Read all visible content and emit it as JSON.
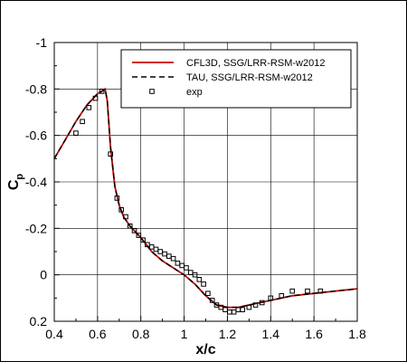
{
  "chart_data": {
    "type": "line",
    "xlabel": "x/c",
    "ylabel": "C",
    "ylabel_subscript": "p",
    "xlim": [
      0.4,
      1.8
    ],
    "ylim": [
      0.2,
      -1.0
    ],
    "y_axis_inverted": true,
    "grid": true,
    "legend_position": "top-right",
    "x_ticks": [
      "0.4",
      "0.6",
      "0.8",
      "1",
      "1.2",
      "1.4",
      "1.6",
      "1.8"
    ],
    "y_ticks": [
      "-1",
      "-0.8",
      "-0.6",
      "-0.4",
      "-0.2",
      "0",
      "0.2"
    ],
    "series": [
      {
        "name": "CFL3D, SSG/LRR-RSM-w2012",
        "style": "solid",
        "color": "#cc0000",
        "x": [
          0.4,
          0.45,
          0.5,
          0.55,
          0.58,
          0.6,
          0.62,
          0.635,
          0.645,
          0.66,
          0.68,
          0.7,
          0.72,
          0.75,
          0.78,
          0.8,
          0.85,
          0.9,
          0.95,
          1.0,
          1.05,
          1.1,
          1.15,
          1.2,
          1.25,
          1.3,
          1.4,
          1.5,
          1.6,
          1.7,
          1.8
        ],
        "y": [
          -0.5,
          -0.58,
          -0.66,
          -0.73,
          -0.76,
          -0.78,
          -0.79,
          -0.8,
          -0.75,
          -0.55,
          -0.38,
          -0.3,
          -0.25,
          -0.21,
          -0.18,
          -0.16,
          -0.1,
          -0.06,
          -0.03,
          0.0,
          0.04,
          0.09,
          0.13,
          0.14,
          0.14,
          0.13,
          0.11,
          0.09,
          0.08,
          0.07,
          0.06
        ]
      },
      {
        "name": "TAU, SSG/LRR-RSM-w2012",
        "style": "dashed",
        "color": "#000000",
        "x": [
          0.4,
          0.45,
          0.5,
          0.55,
          0.58,
          0.6,
          0.62,
          0.635,
          0.645,
          0.66,
          0.68,
          0.7,
          0.72,
          0.75,
          0.78,
          0.8,
          0.85,
          0.9,
          0.95,
          1.0,
          1.05,
          1.1,
          1.15,
          1.2,
          1.25,
          1.3,
          1.4,
          1.5,
          1.6,
          1.7,
          1.8
        ],
        "y": [
          -0.5,
          -0.58,
          -0.66,
          -0.73,
          -0.76,
          -0.78,
          -0.79,
          -0.8,
          -0.75,
          -0.55,
          -0.38,
          -0.3,
          -0.25,
          -0.21,
          -0.18,
          -0.16,
          -0.1,
          -0.06,
          -0.03,
          0.0,
          0.04,
          0.09,
          0.13,
          0.14,
          0.14,
          0.13,
          0.11,
          0.09,
          0.08,
          0.07,
          0.06
        ]
      },
      {
        "name": "exp",
        "style": "markers",
        "color": "#000000",
        "x": [
          0.5,
          0.53,
          0.56,
          0.59,
          0.62,
          0.66,
          0.69,
          0.71,
          0.73,
          0.75,
          0.77,
          0.79,
          0.81,
          0.83,
          0.85,
          0.87,
          0.89,
          0.91,
          0.93,
          0.95,
          0.97,
          0.99,
          1.01,
          1.03,
          1.05,
          1.07,
          1.09,
          1.11,
          1.13,
          1.15,
          1.17,
          1.19,
          1.21,
          1.23,
          1.25,
          1.27,
          1.3,
          1.33,
          1.36,
          1.4,
          1.45,
          1.5,
          1.57,
          1.63
        ],
        "y": [
          -0.61,
          -0.66,
          -0.72,
          -0.76,
          -0.79,
          -0.52,
          -0.33,
          -0.28,
          -0.25,
          -0.21,
          -0.19,
          -0.17,
          -0.15,
          -0.13,
          -0.12,
          -0.11,
          -0.1,
          -0.09,
          -0.08,
          -0.07,
          -0.05,
          -0.04,
          -0.03,
          -0.01,
          0.0,
          0.02,
          0.04,
          0.08,
          0.11,
          0.13,
          0.14,
          0.15,
          0.16,
          0.16,
          0.15,
          0.15,
          0.14,
          0.13,
          0.12,
          0.1,
          0.09,
          0.07,
          0.07,
          0.07
        ]
      }
    ]
  }
}
